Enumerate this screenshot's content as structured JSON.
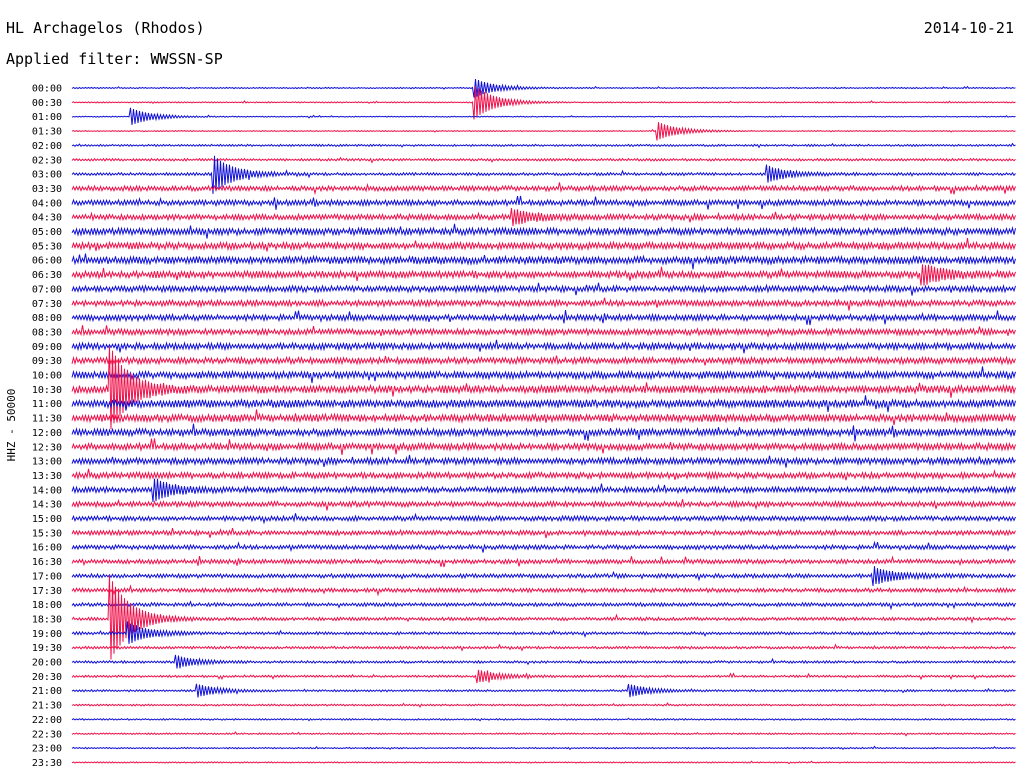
{
  "header": {
    "station": "HL Archagelos (Rhodos)",
    "date": "2014-10-21",
    "filter": "Applied filter: WWSSN-SP"
  },
  "chart_data": {
    "type": "line",
    "title": "HL Archagelos (Rhodos)",
    "ylabel": "HHZ - 50000",
    "row_labels": [
      "00:00",
      "00:30",
      "01:00",
      "01:30",
      "02:00",
      "02:30",
      "03:00",
      "03:30",
      "04:00",
      "04:30",
      "05:00",
      "05:30",
      "06:00",
      "06:30",
      "07:00",
      "07:30",
      "08:00",
      "08:30",
      "09:00",
      "09:30",
      "10:00",
      "10:30",
      "11:00",
      "11:30",
      "12:00",
      "12:30",
      "13:00",
      "13:30",
      "14:00",
      "14:30",
      "15:00",
      "15:30",
      "16:00",
      "16:30",
      "17:00",
      "17:30",
      "18:00",
      "18:30",
      "19:00",
      "19:30",
      "20:00",
      "20:30",
      "21:00",
      "21:30",
      "22:00",
      "22:30",
      "23:00",
      "23:30"
    ],
    "trace_colors": [
      "#1010d8",
      "#f0104a"
    ],
    "noise_level": [
      0.6,
      0.6,
      0.5,
      0.5,
      1.0,
      1.2,
      1.4,
      2.5,
      2.8,
      2.8,
      3.5,
      3.5,
      3.8,
      3.5,
      3.0,
      3.0,
      3.0,
      3.0,
      3.2,
      3.2,
      3.6,
      3.8,
      4.0,
      3.8,
      3.6,
      3.4,
      3.2,
      3.0,
      2.8,
      2.6,
      2.4,
      2.3,
      2.2,
      2.2,
      2.0,
      2.0,
      1.8,
      1.6,
      1.4,
      1.3,
      1.2,
      1.1,
      1.0,
      0.9,
      0.8,
      0.8,
      0.7,
      0.6
    ],
    "events": [
      {
        "row": 0,
        "minute": 12.8,
        "amp": 9
      },
      {
        "row": 1,
        "minute": 12.8,
        "amp": 16
      },
      {
        "row": 2,
        "minute": 1.9,
        "amp": 8
      },
      {
        "row": 3,
        "minute": 18.6,
        "amp": 9
      },
      {
        "row": 6,
        "minute": 4.5,
        "amp": 18
      },
      {
        "row": 6,
        "minute": 22.1,
        "amp": 8
      },
      {
        "row": 9,
        "minute": 14.0,
        "amp": 7
      },
      {
        "row": 13,
        "minute": 27.0,
        "amp": 9
      },
      {
        "row": 21,
        "minute": 1.2,
        "amp": 40
      },
      {
        "row": 28,
        "minute": 2.6,
        "amp": 10
      },
      {
        "row": 34,
        "minute": 25.5,
        "amp": 8
      },
      {
        "row": 37,
        "minute": 1.2,
        "amp": 42
      },
      {
        "row": 38,
        "minute": 1.8,
        "amp": 10
      },
      {
        "row": 40,
        "minute": 3.3,
        "amp": 6
      },
      {
        "row": 41,
        "minute": 12.9,
        "amp": 6
      },
      {
        "row": 42,
        "minute": 4.0,
        "amp": 6
      },
      {
        "row": 42,
        "minute": 17.7,
        "amp": 6
      }
    ]
  }
}
